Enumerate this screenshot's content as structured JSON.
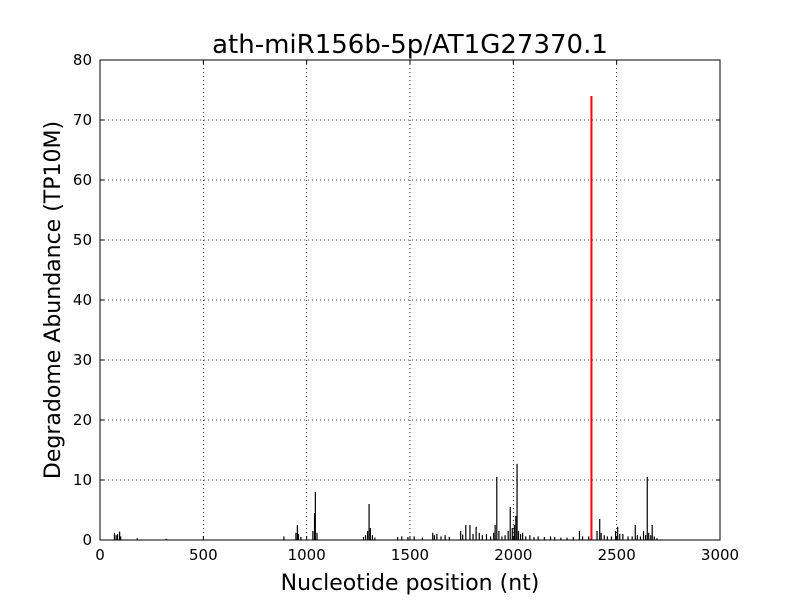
{
  "chart_data": {
    "type": "bar",
    "title": "ath-miR156b-5p/AT1G27370.1",
    "xlabel": "Nucleotide position (nt)",
    "ylabel": "Degradome Abundance (TP10M)",
    "xlim": [
      0,
      3000
    ],
    "ylim": [
      0,
      80
    ],
    "xticks": [
      0,
      500,
      1000,
      1500,
      2000,
      2500,
      3000
    ],
    "yticks": [
      0,
      10,
      20,
      30,
      40,
      50,
      60,
      70,
      80
    ],
    "grid": true,
    "colors": {
      "background": "#000000",
      "highlight": "#ff0000"
    },
    "series": [
      {
        "values": [
          [
            70,
            1.2
          ],
          [
            78,
            0.8
          ],
          [
            85,
            1.0
          ],
          [
            95,
            1.4
          ],
          [
            100,
            0.6
          ],
          [
            180,
            0.3
          ],
          [
            320,
            0.2
          ],
          [
            890,
            0.6
          ],
          [
            948,
            1.2
          ],
          [
            955,
            2.5
          ],
          [
            960,
            1.0
          ],
          [
            972,
            0.5
          ],
          [
            1030,
            1.5
          ],
          [
            1038,
            4.5
          ],
          [
            1042,
            8.0
          ],
          [
            1050,
            1.2
          ],
          [
            1275,
            0.5
          ],
          [
            1285,
            0.8
          ],
          [
            1295,
            1.5
          ],
          [
            1302,
            6.0
          ],
          [
            1308,
            2.0
          ],
          [
            1318,
            0.8
          ],
          [
            1330,
            0.4
          ],
          [
            1440,
            0.5
          ],
          [
            1460,
            0.6
          ],
          [
            1490,
            0.5
          ],
          [
            1520,
            0.6
          ],
          [
            1560,
            0.4
          ],
          [
            1610,
            1.2
          ],
          [
            1618,
            0.8
          ],
          [
            1630,
            1.0
          ],
          [
            1650,
            0.6
          ],
          [
            1670,
            0.8
          ],
          [
            1690,
            0.5
          ],
          [
            1745,
            1.5
          ],
          [
            1755,
            0.9
          ],
          [
            1770,
            2.5
          ],
          [
            1790,
            2.5
          ],
          [
            1805,
            1.0
          ],
          [
            1820,
            2.2
          ],
          [
            1835,
            1.2
          ],
          [
            1850,
            0.8
          ],
          [
            1870,
            1.0
          ],
          [
            1890,
            0.6
          ],
          [
            1905,
            1.2
          ],
          [
            1912,
            2.5
          ],
          [
            1920,
            10.5
          ],
          [
            1930,
            1.5
          ],
          [
            1945,
            0.6
          ],
          [
            1960,
            0.8
          ],
          [
            1975,
            1.5
          ],
          [
            1985,
            5.5
          ],
          [
            1995,
            2.0
          ],
          [
            2005,
            2.5
          ],
          [
            2012,
            4.0
          ],
          [
            2018,
            12.7
          ],
          [
            2025,
            1.5
          ],
          [
            2035,
            1.0
          ],
          [
            2045,
            1.2
          ],
          [
            2060,
            0.6
          ],
          [
            2080,
            0.8
          ],
          [
            2100,
            0.5
          ],
          [
            2120,
            0.6
          ],
          [
            2150,
            0.5
          ],
          [
            2180,
            0.6
          ],
          [
            2200,
            0.5
          ],
          [
            2230,
            0.4
          ],
          [
            2260,
            0.4
          ],
          [
            2290,
            0.5
          ],
          [
            2320,
            1.5
          ],
          [
            2335,
            0.6
          ],
          [
            2365,
            0.6
          ],
          [
            2405,
            1.5
          ],
          [
            2418,
            3.5
          ],
          [
            2425,
            1.2
          ],
          [
            2440,
            0.8
          ],
          [
            2455,
            0.6
          ],
          [
            2475,
            0.6
          ],
          [
            2495,
            1.5
          ],
          [
            2505,
            2.2
          ],
          [
            2515,
            1.0
          ],
          [
            2530,
            1.0
          ],
          [
            2555,
            0.6
          ],
          [
            2575,
            0.6
          ],
          [
            2590,
            2.5
          ],
          [
            2600,
            0.8
          ],
          [
            2615,
            0.6
          ],
          [
            2630,
            1.5
          ],
          [
            2640,
            0.8
          ],
          [
            2648,
            10.5
          ],
          [
            2655,
            1.2
          ],
          [
            2665,
            0.8
          ],
          [
            2672,
            2.5
          ],
          [
            2682,
            0.6
          ],
          [
            2695,
            0.3
          ]
        ]
      },
      {
        "values": [
          [
            2378,
            74.0
          ]
        ]
      }
    ]
  }
}
